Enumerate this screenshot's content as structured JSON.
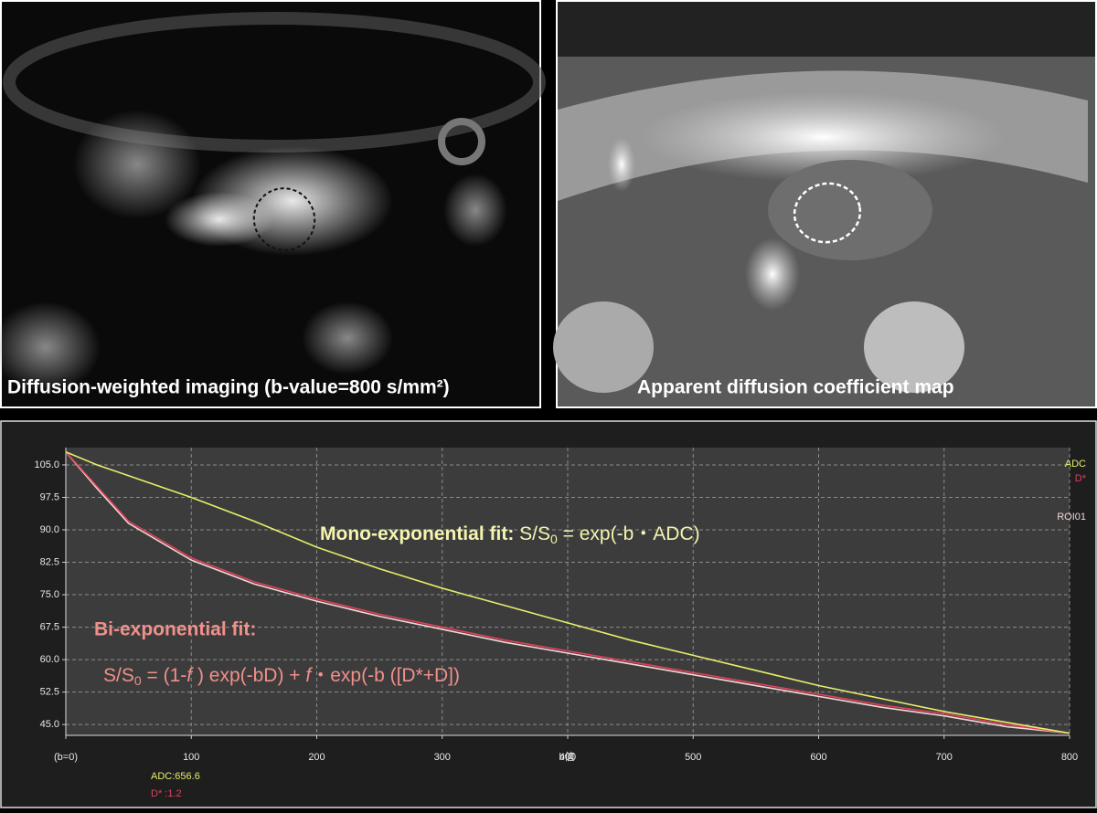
{
  "panels": [
    {
      "caption": "Diffusion-weighted imaging (b-value=800 s/mm²)"
    },
    {
      "caption": "Apparent diffusion coefficient  map"
    }
  ],
  "chart_data": {
    "type": "line",
    "x": [
      0,
      25,
      50,
      100,
      150,
      200,
      250,
      300,
      350,
      400,
      450,
      500,
      550,
      600,
      650,
      700,
      750,
      800
    ],
    "series": [
      {
        "name": "ADC",
        "color": "#e6ee6a",
        "values": [
          108,
          105,
          102.5,
          97.5,
          92,
          86,
          81,
          76.5,
          72.5,
          68.5,
          64.5,
          61,
          57.5,
          54,
          51,
          48,
          45.5,
          43
        ]
      },
      {
        "name": "D*",
        "color": "#e0405a",
        "values": [
          108,
          100,
          92,
          83.5,
          78,
          74,
          70.5,
          67.5,
          64.5,
          62,
          59.5,
          57,
          54.5,
          52,
          49.5,
          47.5,
          45,
          43
        ]
      },
      {
        "name": "ROI01",
        "color": "#f2d6d6",
        "values": [
          108,
          99.5,
          91.5,
          83,
          77.5,
          73.5,
          70,
          67,
          64,
          61.5,
          59,
          56.5,
          54,
          51.5,
          49,
          47,
          44.5,
          43
        ]
      }
    ],
    "xlim": [
      0,
      800
    ],
    "xticks": [
      {
        "value": 0,
        "label": "(b=0)"
      },
      100,
      200,
      300,
      400,
      500,
      600,
      700,
      800
    ],
    "xlabel": "b値",
    "ylim": [
      42.5,
      109
    ],
    "yticks": [
      {
        "value": 45,
        "label": "45.0"
      },
      {
        "value": 52.5,
        "label": "52.5"
      },
      {
        "value": 60,
        "label": "60.0"
      },
      {
        "value": 67.5,
        "label": "67.5"
      },
      {
        "value": 75,
        "label": "75.0"
      },
      {
        "value": 82.5,
        "label": "82.5"
      },
      {
        "value": 90,
        "label": "90.0"
      },
      {
        "value": 97.5,
        "label": "97.5"
      },
      {
        "value": 105,
        "label": "105.0"
      }
    ],
    "grid": true,
    "legend": "upper right",
    "annotations": {
      "mono": {
        "label": "Mono-exponential fit:",
        "formula": [
          "S/S",
          "0",
          " = exp(-b・ADC)"
        ]
      },
      "bi": {
        "label": "Bi-exponential fit:",
        "formula": [
          "S/S",
          "0",
          " = (1-",
          "f",
          " ) exp(-bD) + ",
          "f",
          "・exp(-b ([D*+D])"
        ]
      },
      "adc_value": "ADC:656.6",
      "dstar_value": "D* :1.2"
    }
  }
}
